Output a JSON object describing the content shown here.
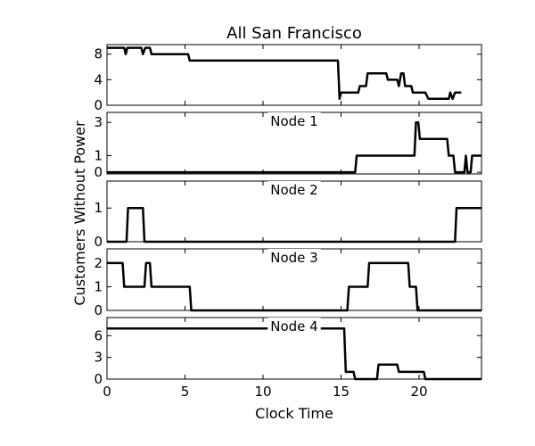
{
  "chart_data": {
    "type": "line",
    "title": "All San Francisco",
    "xlabel": "Clock Time",
    "ylabel": "Customers Without Power",
    "xlim": [
      0,
      24
    ],
    "x_ticks": [
      0,
      5,
      10,
      15,
      20
    ],
    "panels": [
      {
        "name": "",
        "ylim": [
          0,
          9.5
        ],
        "y_ticks": [
          0,
          4,
          8
        ],
        "points": [
          [
            0,
            9
          ],
          [
            1.1,
            9
          ],
          [
            1.2,
            8
          ],
          [
            1.3,
            9
          ],
          [
            2.2,
            9
          ],
          [
            2.3,
            8
          ],
          [
            2.45,
            9
          ],
          [
            2.75,
            9
          ],
          [
            2.85,
            8
          ],
          [
            5.2,
            8
          ],
          [
            5.3,
            7
          ],
          [
            14.8,
            7
          ],
          [
            14.9,
            1
          ],
          [
            15.0,
            2
          ],
          [
            16.1,
            2
          ],
          [
            16.2,
            3
          ],
          [
            16.6,
            3
          ],
          [
            16.7,
            5
          ],
          [
            17.9,
            5
          ],
          [
            18.0,
            4
          ],
          [
            18.6,
            4
          ],
          [
            18.7,
            3
          ],
          [
            18.85,
            5
          ],
          [
            19.0,
            5
          ],
          [
            19.1,
            3
          ],
          [
            19.5,
            3
          ],
          [
            19.6,
            2
          ],
          [
            20.4,
            2
          ],
          [
            20.6,
            1
          ],
          [
            21.9,
            1
          ],
          [
            22.0,
            2
          ],
          [
            22.15,
            1
          ],
          [
            22.3,
            2
          ],
          [
            22.7,
            2
          ]
        ]
      },
      {
        "name": "Node 1",
        "ylim": [
          -0.1,
          3.6
        ],
        "y_ticks": [
          0,
          1,
          3
        ],
        "points": [
          [
            0,
            0
          ],
          [
            15.9,
            0
          ],
          [
            16.0,
            1
          ],
          [
            19.7,
            1
          ],
          [
            19.8,
            3
          ],
          [
            19.95,
            3
          ],
          [
            20.05,
            2
          ],
          [
            21.8,
            2
          ],
          [
            21.9,
            1
          ],
          [
            22.2,
            1
          ],
          [
            22.3,
            0
          ],
          [
            22.9,
            0
          ],
          [
            23.0,
            1
          ],
          [
            23.1,
            0
          ],
          [
            23.3,
            0
          ],
          [
            23.4,
            1
          ],
          [
            24,
            1
          ]
        ]
      },
      {
        "name": "Node 2",
        "ylim": [
          0,
          1.8
        ],
        "y_ticks": [
          0,
          1
        ],
        "points": [
          [
            0,
            0
          ],
          [
            1.25,
            0
          ],
          [
            1.35,
            1
          ],
          [
            2.3,
            1
          ],
          [
            2.4,
            0
          ],
          [
            22.3,
            0
          ],
          [
            22.4,
            1
          ],
          [
            24,
            1
          ]
        ]
      },
      {
        "name": "Node 3",
        "ylim": [
          0,
          2.6
        ],
        "y_ticks": [
          0,
          1,
          2
        ],
        "points": [
          [
            0,
            2
          ],
          [
            1.0,
            2
          ],
          [
            1.1,
            1
          ],
          [
            2.4,
            1
          ],
          [
            2.5,
            2
          ],
          [
            2.75,
            2
          ],
          [
            2.85,
            1
          ],
          [
            5.3,
            1
          ],
          [
            5.4,
            0
          ],
          [
            15.4,
            0
          ],
          [
            15.5,
            1
          ],
          [
            16.7,
            1
          ],
          [
            16.8,
            2
          ],
          [
            19.3,
            2
          ],
          [
            19.4,
            1
          ],
          [
            19.8,
            1
          ],
          [
            19.9,
            0
          ],
          [
            24,
            0
          ]
        ]
      },
      {
        "name": "Node 4",
        "ylim": [
          0,
          8.5
        ],
        "y_ticks": [
          0,
          3,
          6
        ],
        "points": [
          [
            0,
            7
          ],
          [
            15.2,
            7
          ],
          [
            15.3,
            1
          ],
          [
            15.8,
            1
          ],
          [
            15.9,
            0
          ],
          [
            17.3,
            0
          ],
          [
            17.4,
            2
          ],
          [
            18.6,
            2
          ],
          [
            18.7,
            1
          ],
          [
            20.3,
            1
          ],
          [
            20.4,
            0
          ],
          [
            24,
            0
          ]
        ]
      }
    ],
    "grid": false,
    "legend": "none"
  }
}
